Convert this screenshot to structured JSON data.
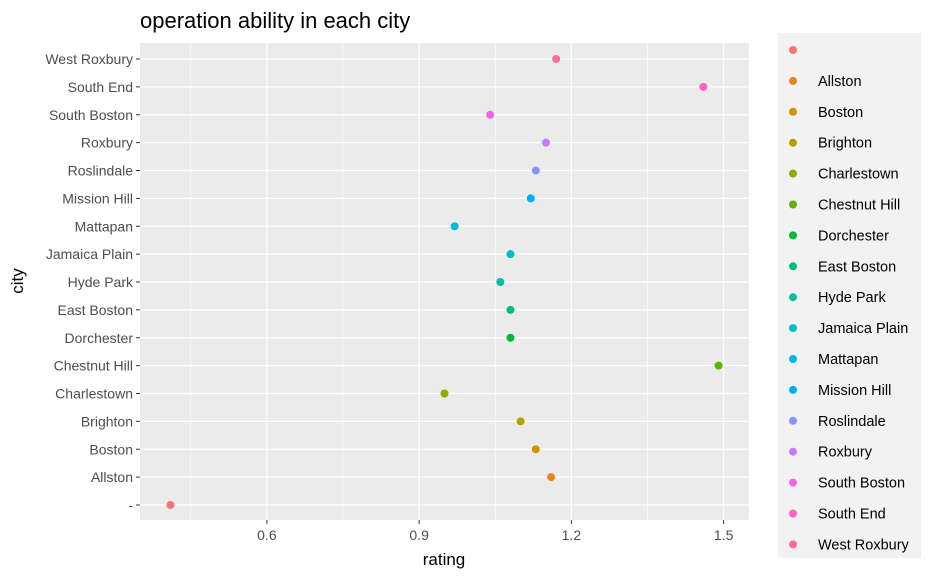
{
  "chart_data": {
    "type": "scatter",
    "title": "operation ability in each city",
    "xlabel": "rating",
    "ylabel": "city",
    "xlim": [
      0.35,
      1.55
    ],
    "x_ticks": [
      0.6,
      0.9,
      1.2,
      1.5
    ],
    "x_tick_labels": [
      "0.6",
      "0.9",
      "1.2",
      "1.5"
    ],
    "categories": [
      "-",
      "Allston",
      "Boston",
      "Brighton",
      "Charlestown",
      "Chestnut Hill",
      "Dorchester",
      "East Boston",
      "Hyde Park",
      "Jamaica Plain",
      "Mattapan",
      "Mission Hill",
      "Roslindale",
      "Roxbury",
      "South Boston",
      "South End",
      "West Roxbury"
    ],
    "values": [
      0.41,
      1.16,
      1.13,
      1.1,
      0.95,
      1.49,
      1.08,
      1.08,
      1.06,
      1.08,
      0.97,
      1.12,
      1.13,
      1.15,
      1.04,
      1.46,
      1.17
    ],
    "colors": [
      "#F8766D",
      "#E7861B",
      "#D39200",
      "#B79F00",
      "#93AA00",
      "#5EB300",
      "#00BA38",
      "#00BF74",
      "#00C19F",
      "#00BFC4",
      "#00B9E3",
      "#00ADFA",
      "#8B93FF",
      "#C77CFF",
      "#F564E3",
      "#FF61C3",
      "#FF6C91"
    ],
    "legend_labels": [
      "",
      "Allston",
      "Boston",
      "Brighton",
      "Charlestown",
      "Chestnut Hill",
      "Dorchester",
      "East Boston",
      "Hyde Park",
      "Jamaica Plain",
      "Mattapan",
      "Mission Hill",
      "Roslindale",
      "Roxbury",
      "South Boston",
      "South End",
      "West Roxbury"
    ],
    "legend_position": "right",
    "grid": true
  }
}
